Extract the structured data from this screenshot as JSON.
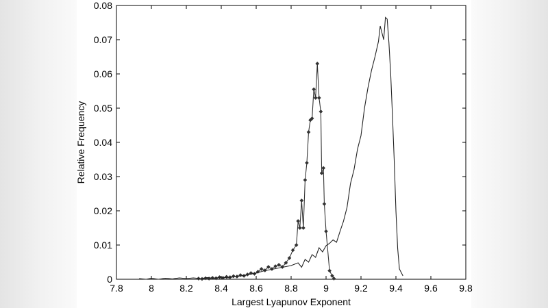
{
  "chart_data": {
    "type": "line",
    "xlabel": "Largest Lyapunov Exponent",
    "ylabel": "Relative Frequency",
    "xlim": [
      7.8,
      9.8
    ],
    "ylim": [
      0,
      0.08
    ],
    "xticks": [
      "7.8",
      "8",
      "8.2",
      "8.4",
      "8.6",
      "8.8",
      "9",
      "9.2",
      "9.4",
      "9.6",
      "9.8"
    ],
    "yticks": [
      "0",
      "0.01",
      "0.02",
      "0.03",
      "0.04",
      "0.05",
      "0.06",
      "0.07",
      "0.08"
    ],
    "grid": false,
    "series": [
      {
        "marker": "diamond",
        "color": "#333333",
        "points": [
          [
            8.27,
            0.0002
          ],
          [
            8.29,
            0.0001
          ],
          [
            8.31,
            0.0003
          ],
          [
            8.33,
            0.0002
          ],
          [
            8.35,
            0.0004
          ],
          [
            8.37,
            0.0003
          ],
          [
            8.39,
            0.0006
          ],
          [
            8.41,
            0.0004
          ],
          [
            8.43,
            0.0007
          ],
          [
            8.45,
            0.0006
          ],
          [
            8.47,
            0.0009
          ],
          [
            8.49,
            0.0008
          ],
          [
            8.51,
            0.0012
          ],
          [
            8.53,
            0.001
          ],
          [
            8.55,
            0.0014
          ],
          [
            8.57,
            0.0018
          ],
          [
            8.59,
            0.0016
          ],
          [
            8.61,
            0.0022
          ],
          [
            8.63,
            0.003
          ],
          [
            8.65,
            0.0026
          ],
          [
            8.67,
            0.0036
          ],
          [
            8.69,
            0.003
          ],
          [
            8.71,
            0.0038
          ],
          [
            8.73,
            0.0042
          ],
          [
            8.75,
            0.0036
          ],
          [
            8.77,
            0.0048
          ],
          [
            8.79,
            0.0062
          ],
          [
            8.81,
            0.0085
          ],
          [
            8.83,
            0.01
          ],
          [
            8.84,
            0.017
          ],
          [
            8.85,
            0.015
          ],
          [
            8.86,
            0.023
          ],
          [
            8.87,
            0.015
          ],
          [
            8.88,
            0.029
          ],
          [
            8.89,
            0.034
          ],
          [
            8.9,
            0.043
          ],
          [
            8.91,
            0.0465
          ],
          [
            8.92,
            0.047
          ],
          [
            8.93,
            0.0555
          ],
          [
            8.94,
            0.053
          ],
          [
            8.95,
            0.063
          ],
          [
            8.96,
            0.053
          ],
          [
            8.97,
            0.049
          ],
          [
            8.975,
            0.031
          ],
          [
            8.985,
            0.0325
          ],
          [
            8.99,
            0.022
          ],
          [
            9.0,
            0.014
          ],
          [
            9.02,
            0.0025
          ],
          [
            9.035,
            0.001
          ],
          [
            9.045,
            0.0002
          ]
        ]
      },
      {
        "marker": "none",
        "color": "#222222",
        "points": [
          [
            7.93,
            0.0002
          ],
          [
            7.97,
            0.0
          ],
          [
            8.0,
            0.0003
          ],
          [
            8.04,
            0.0
          ],
          [
            8.08,
            0.0003
          ],
          [
            8.12,
            0.0001
          ],
          [
            8.16,
            0.0004
          ],
          [
            8.2,
            0.0002
          ],
          [
            8.24,
            0.0004
          ],
          [
            8.28,
            0.0002
          ],
          [
            8.32,
            0.0005
          ],
          [
            8.36,
            0.0003
          ],
          [
            8.4,
            0.0006
          ],
          [
            8.44,
            0.0004
          ],
          [
            8.48,
            0.0008
          ],
          [
            8.52,
            0.001
          ],
          [
            8.56,
            0.0014
          ],
          [
            8.6,
            0.0018
          ],
          [
            8.64,
            0.0024
          ],
          [
            8.68,
            0.0028
          ],
          [
            8.72,
            0.0032
          ],
          [
            8.76,
            0.0036
          ],
          [
            8.8,
            0.004
          ],
          [
            8.84,
            0.0048
          ],
          [
            8.86,
            0.0035
          ],
          [
            8.88,
            0.0058
          ],
          [
            8.9,
            0.005
          ],
          [
            8.92,
            0.0072
          ],
          [
            8.94,
            0.0064
          ],
          [
            8.96,
            0.0092
          ],
          [
            8.98,
            0.008
          ],
          [
            9.0,
            0.0098
          ],
          [
            9.02,
            0.0105
          ],
          [
            9.04,
            0.0115
          ],
          [
            9.06,
            0.0108
          ],
          [
            9.08,
            0.014
          ],
          [
            9.1,
            0.017
          ],
          [
            9.12,
            0.021
          ],
          [
            9.14,
            0.028
          ],
          [
            9.16,
            0.032
          ],
          [
            9.18,
            0.038
          ],
          [
            9.2,
            0.042
          ],
          [
            9.22,
            0.05
          ],
          [
            9.24,
            0.056
          ],
          [
            9.26,
            0.061
          ],
          [
            9.28,
            0.065
          ],
          [
            9.3,
            0.0695
          ],
          [
            9.31,
            0.074
          ],
          [
            9.32,
            0.072
          ],
          [
            9.33,
            0.07
          ],
          [
            9.34,
            0.0765
          ],
          [
            9.35,
            0.076
          ],
          [
            9.36,
            0.069
          ],
          [
            9.37,
            0.06
          ],
          [
            9.38,
            0.048
          ],
          [
            9.39,
            0.035
          ],
          [
            9.4,
            0.02
          ],
          [
            9.41,
            0.009
          ],
          [
            9.42,
            0.003
          ],
          [
            9.44,
            0.001
          ]
        ]
      }
    ]
  }
}
